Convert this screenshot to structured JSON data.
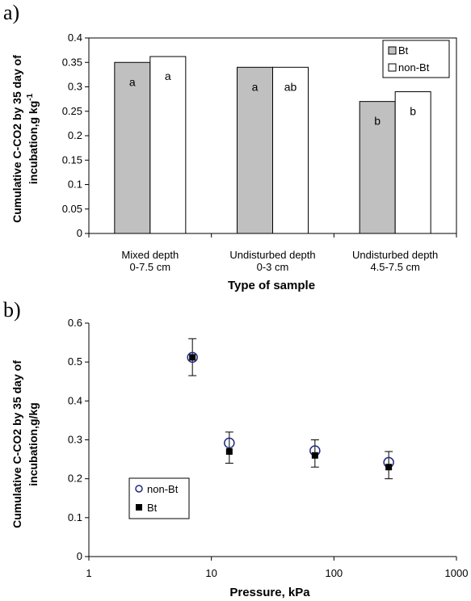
{
  "chart_data": [
    {
      "panel": "a)",
      "type": "bar",
      "categories": [
        [
          "Mixed depth",
          "0-7.5 cm"
        ],
        [
          "Undisturbed depth",
          "0-3 cm"
        ],
        [
          "Undisturbed depth",
          "4.5-7.5 cm"
        ]
      ],
      "series": [
        {
          "name": "Bt",
          "values": [
            0.35,
            0.34,
            0.27
          ],
          "labels": [
            "a",
            "a",
            "b"
          ],
          "color": "#c0c0c0"
        },
        {
          "name": "non-Bt",
          "values": [
            0.362,
            0.34,
            0.29
          ],
          "labels": [
            "a",
            "ab",
            "b"
          ],
          "color": "#ffffff"
        }
      ],
      "xlabel": "Type of sample",
      "ylabel": [
        "Cumulative C-CO2 by 35 day of",
        "incubation,g kg"
      ],
      "ylabel_sup": "-1",
      "ylim": [
        0,
        0.4
      ],
      "yticks": [
        "0",
        "0.05",
        "0.1",
        "0.15",
        "0.2",
        "0.25",
        "0.3",
        "0.35",
        "0.4"
      ],
      "legend": "top-right"
    },
    {
      "panel": "b)",
      "type": "scatter",
      "x_scale": "log",
      "xlim": [
        1,
        1000
      ],
      "xticks": [
        "1",
        "10",
        "100",
        "1000"
      ],
      "ylim": [
        0,
        0.6
      ],
      "yticks": [
        "0",
        "0.1",
        "0.2",
        "0.3",
        "0.4",
        "0.5",
        "0.6"
      ],
      "series": [
        {
          "name": "non-Bt",
          "marker": "open-circle",
          "color": "#1f2a80",
          "x": [
            7,
            14,
            70,
            280
          ],
          "y": [
            0.512,
            0.292,
            0.272,
            0.242
          ]
        },
        {
          "name": "Bt",
          "marker": "filled-square",
          "color": "#000000",
          "x": [
            7,
            14,
            70,
            280
          ],
          "y": [
            0.512,
            0.27,
            0.26,
            0.23
          ],
          "err_low": [
            0.465,
            0.24,
            0.23,
            0.2
          ],
          "err_high": [
            0.56,
            0.32,
            0.3,
            0.27
          ]
        }
      ],
      "xlabel": "Pressure, kPa",
      "ylabel": [
        "Cumulative C-CO2 by 35 day of",
        "incubation,g/kg"
      ],
      "legend": "lower-left"
    }
  ]
}
